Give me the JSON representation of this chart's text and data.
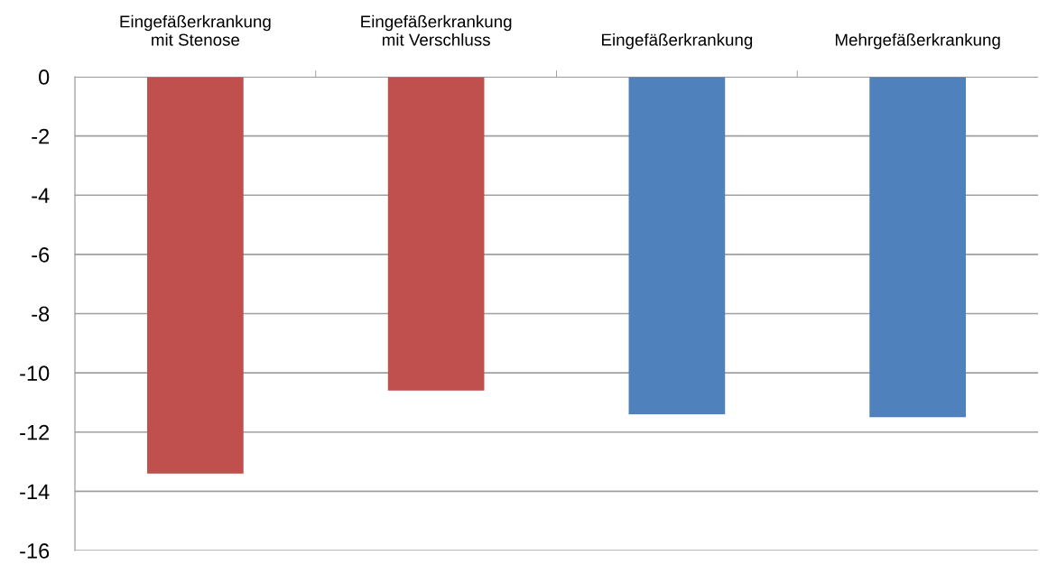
{
  "chart_data": {
    "type": "bar",
    "categories": [
      "Eingefäßerkrankung\nmit Stenose",
      "Eingefäßerkrankung\nmit Verschluss",
      "Eingefäßerkrankung",
      "Mehrgefäßerkrankung"
    ],
    "values": [
      -13.4,
      -10.6,
      -11.4,
      -11.5
    ],
    "colors": [
      "#c0504d",
      "#c0504d",
      "#4f81bd",
      "#4f81bd"
    ],
    "ylim": [
      -16,
      0
    ],
    "yticks": [
      -16,
      -14,
      -12,
      -10,
      -8,
      -6,
      -4,
      -2,
      0
    ],
    "grid": "y"
  }
}
